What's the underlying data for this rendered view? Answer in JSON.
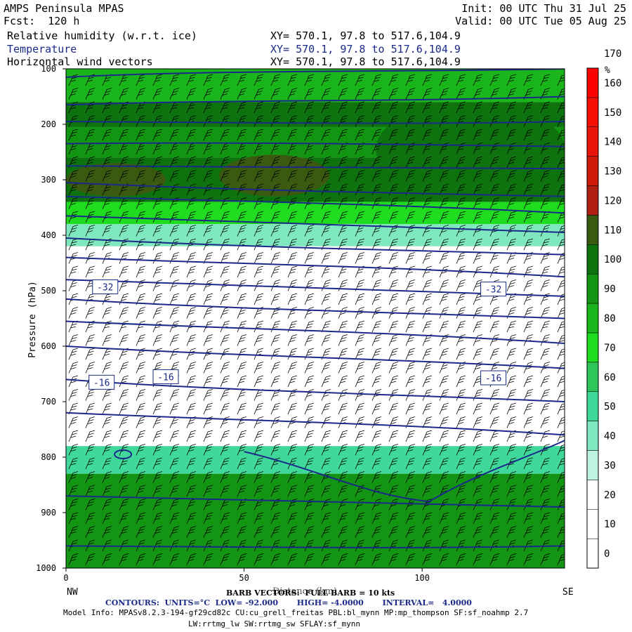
{
  "header": {
    "title": "AMPS Peninsula MPAS",
    "fcst": "Fcst:  120 h",
    "init": "Init: 00 UTC Thu 31 Jul 25",
    "valid": "Valid: 00 UTC Tue 05 Aug 25",
    "fields": [
      {
        "name": "Relative humidity (w.r.t. ice)",
        "xy": "XY= 570.1, 97.8 to 517.6,104.9"
      },
      {
        "name": "Temperature",
        "xy": "XY= 570.1, 97.8 to 517.6,104.9"
      },
      {
        "name": "Horizontal wind vectors",
        "xy": "XY= 570.1, 97.8 to 517.6,104.9"
      }
    ]
  },
  "footer": {
    "barb": "BARB VECTORS:  FULL BARB = 10 kts",
    "xlabel_overlap": "Distance (km)",
    "contours": "CONTOURS:  UNITS=°C  LOW= -92.000       HIGH= -4.0000       INTERVAL=   4.0000",
    "model_info": "Model Info: MPASv8.2.3-194-gf29cd82c CU:cu_grell_freitas PBL:bl_mynn MP:mp_thompson SF:sf_noahmp 2.7",
    "model_info2": "LW:rrtmg_lw SW:rrtmg_sw SFLAY:sf_mynn"
  },
  "x_end_labels": {
    "left": "NW",
    "right": "SE"
  },
  "colors": {
    "frame": "#000000",
    "temp_contour": "#1b2a8a",
    "colorbar": [
      "#ffffff",
      "#ffffff",
      "#ffffff",
      "#bff2e0",
      "#7fe8c0",
      "#3fd89a",
      "#2ec65a",
      "#1fdc1f",
      "#1ab51a",
      "#139413",
      "#0e730e",
      "#3a5a10",
      "#b02010",
      "#d01a0a",
      "#e8140a",
      "#f50f05",
      "#ff0000"
    ]
  },
  "chart_data": {
    "type": "heatmap",
    "ylabel": "Pressure (hPa)",
    "xlabel": "Distance (km)",
    "x_ticks": [
      0,
      50,
      100
    ],
    "x_range": [
      0,
      140
    ],
    "y_ticks": [
      100,
      200,
      300,
      400,
      500,
      600,
      700,
      800,
      900,
      1000
    ],
    "y_range": [
      100,
      1000
    ],
    "colorbar": {
      "unit": "%",
      "levels": [
        0,
        10,
        20,
        30,
        40,
        50,
        60,
        70,
        80,
        90,
        100,
        110,
        120,
        130,
        140,
        150,
        160,
        170
      ]
    },
    "rh_bands": [
      {
        "p_top": 100,
        "p_bot": 160,
        "rh": 85
      },
      {
        "p_top": 160,
        "p_bot": 205,
        "rh": 100
      },
      {
        "p_top": 205,
        "p_bot": 260,
        "rh": 95
      },
      {
        "p_top": 260,
        "p_bot": 340,
        "rh": 105
      },
      {
        "p_top": 340,
        "p_bot": 380,
        "rh": 75
      },
      {
        "p_top": 380,
        "p_bot": 420,
        "rh": 45
      },
      {
        "p_top": 420,
        "p_bot": 780,
        "rh": 15
      },
      {
        "p_top": 780,
        "p_bot": 830,
        "rh": 55
      },
      {
        "p_top": 830,
        "p_bot": 1000,
        "rh": 95
      }
    ],
    "rh_blobs": [
      {
        "x0": 0,
        "x1": 28,
        "p_top": 270,
        "p_bot": 330,
        "rh": 115
      },
      {
        "x0": 43,
        "x1": 74,
        "p_top": 255,
        "p_bot": 330,
        "rh": 115
      },
      {
        "x0": 87,
        "x1": 140,
        "p_top": 160,
        "p_bot": 330,
        "rh": 108
      }
    ],
    "temp_contour_labels": [
      {
        "x": 11,
        "p": 493,
        "text": "-32"
      },
      {
        "x": 120,
        "p": 497,
        "text": "-32"
      },
      {
        "x": 10,
        "p": 665,
        "text": "-16"
      },
      {
        "x": 28,
        "p": 655,
        "text": "-16"
      },
      {
        "x": 120,
        "p": 657,
        "text": "-16"
      }
    ],
    "temp_isotherm_p_left": [
      115,
      165,
      195,
      235,
      275,
      305,
      330,
      365,
      405,
      440,
      480,
      515,
      555,
      600,
      660,
      720,
      870,
      960
    ],
    "temp_isotherm_p_right": [
      100,
      150,
      195,
      240,
      280,
      330,
      360,
      395,
      435,
      475,
      510,
      550,
      595,
      640,
      700,
      760,
      890,
      960
    ]
  }
}
